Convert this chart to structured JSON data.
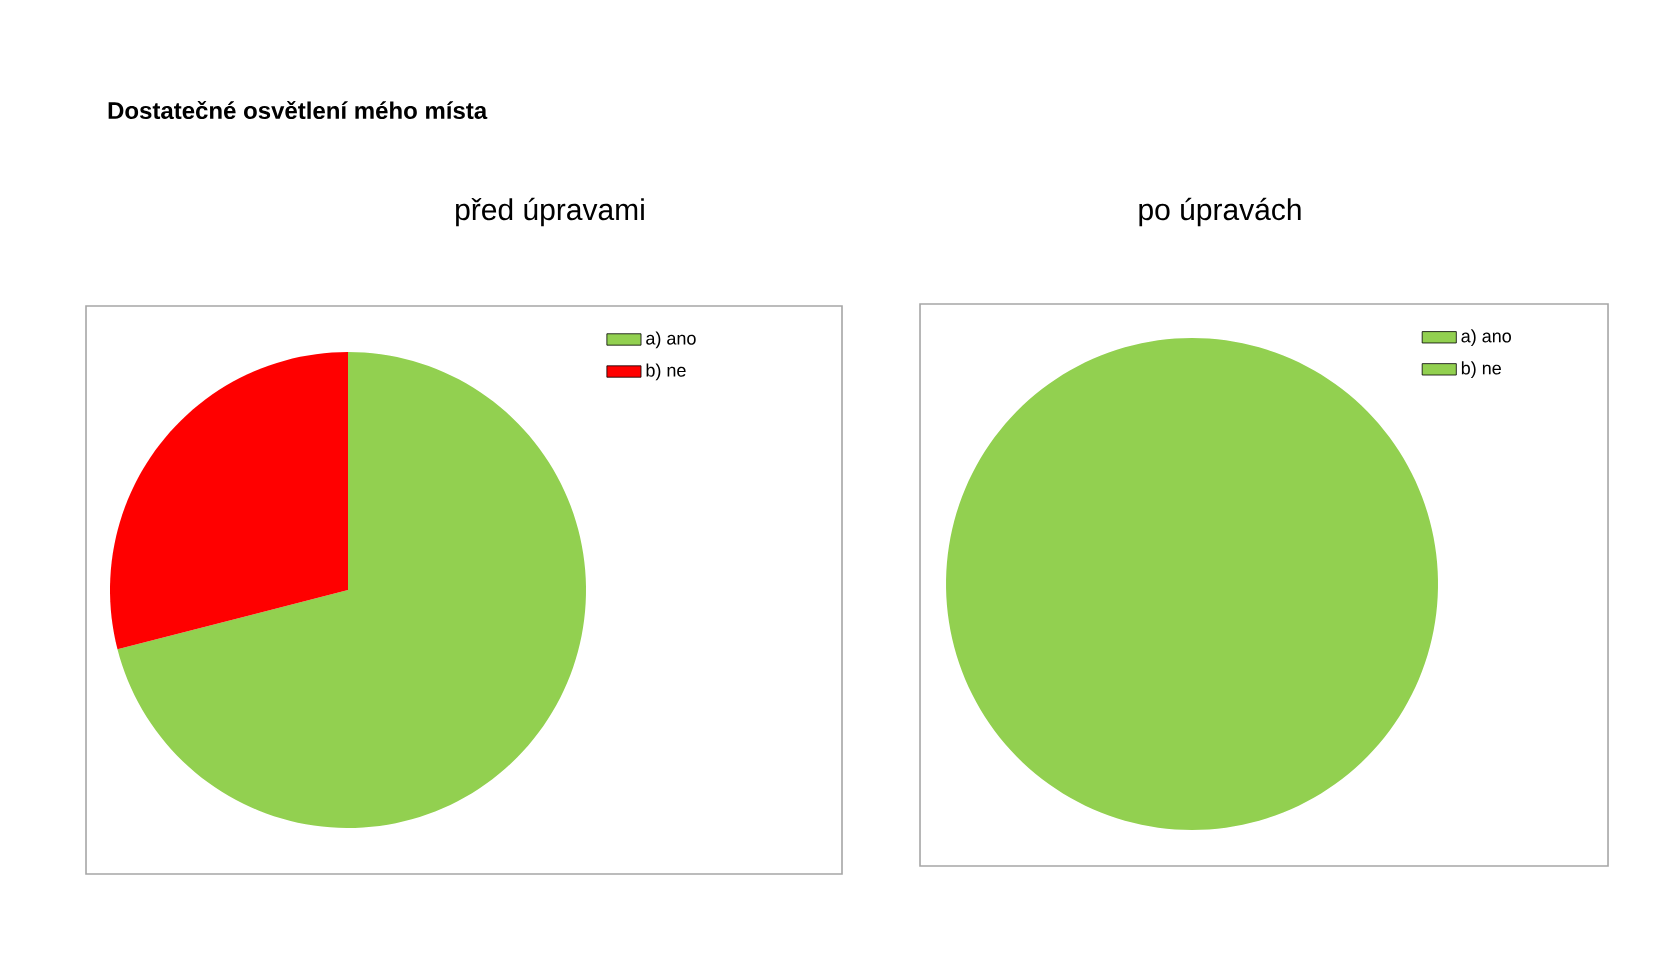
{
  "chart_data": [
    {
      "type": "pie",
      "title": "Dostatečné osvětlení mého místa",
      "subtitle": "před úpravami",
      "categories": [
        "a) ano",
        "b) ne"
      ],
      "values": [
        71,
        29
      ],
      "colors": [
        "#92d050",
        "#ff0000"
      ],
      "legend": "top right"
    },
    {
      "type": "pie",
      "title": "po úpravách",
      "categories": [
        "a) ano",
        "b) ne"
      ],
      "values": [
        100,
        0
      ],
      "colors": [
        "#92d050",
        "#92d050"
      ],
      "legend": "top right"
    }
  ]
}
